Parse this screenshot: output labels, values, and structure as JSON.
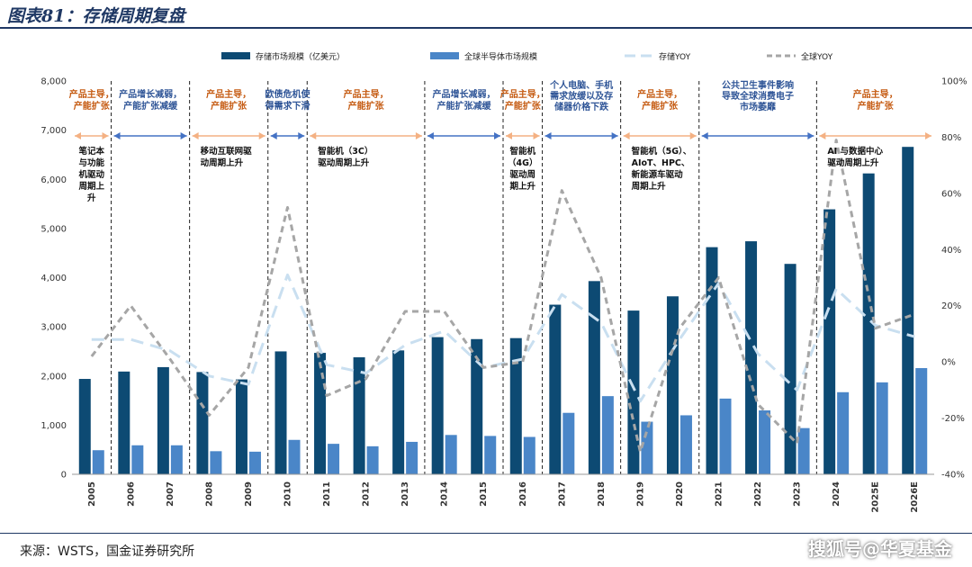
{
  "header": {
    "title": "图表81：存储周期复盘"
  },
  "footer": {
    "source": "来源：WSTS，国金证券研究所",
    "watermark": "搜狐号@华夏基金"
  },
  "colors": {
    "storage_bar": "#0d4a73",
    "global_bar": "#4a86c8",
    "storage_yoy": "#c9dff0",
    "global_yoy": "#a6a6a6",
    "phase_up": "#f4b183",
    "phase_down": "#4472c4"
  },
  "chart_data": {
    "type": "bar",
    "categories": [
      "2005",
      "2006",
      "2007",
      "2008",
      "2009",
      "2010",
      "2011",
      "2012",
      "2013",
      "2014",
      "2015",
      "2016",
      "2017",
      "2018",
      "2019",
      "2020",
      "2021",
      "2022",
      "2023",
      "2024",
      "2025E",
      "2026E"
    ],
    "y_left": {
      "min": 0,
      "max": 8000,
      "ticks": [
        "0",
        "1,000",
        "2,000",
        "3,000",
        "4,000",
        "5,000",
        "6,000",
        "7,000",
        "8,000"
      ]
    },
    "y_right": {
      "min": -40,
      "max": 100,
      "ticks": [
        "-40%",
        "-20%",
        "0%",
        "20%",
        "40%",
        "60%",
        "80%",
        "100%"
      ]
    },
    "legend_position": "top",
    "series": [
      {
        "name": "存储市场规模（亿美元）",
        "kind": "bar",
        "axis": "left",
        "values": [
          1940,
          2090,
          2180,
          2080,
          1930,
          2500,
          2470,
          2380,
          2520,
          2790,
          2750,
          2770,
          3450,
          3930,
          3330,
          3620,
          4620,
          4740,
          4280,
          5390,
          6120,
          6660
        ]
      },
      {
        "name": "全球半导体市场规模",
        "kind": "bar",
        "axis": "left",
        "values": [
          490,
          590,
          590,
          470,
          460,
          700,
          620,
          570,
          660,
          800,
          780,
          760,
          1250,
          1590,
          1070,
          1200,
          1540,
          1300,
          940,
          1670,
          1870,
          2160
        ]
      },
      {
        "name": "存储YOY",
        "kind": "line",
        "axis": "right",
        "values": [
          8,
          8,
          4,
          -5,
          -8,
          31,
          -1,
          -4,
          6,
          11,
          -2,
          1,
          24,
          14,
          -14,
          8,
          28,
          3,
          -10,
          26,
          13,
          9
        ]
      },
      {
        "name": "全球YOY",
        "kind": "line",
        "axis": "right",
        "values": [
          2,
          20,
          1,
          -19,
          -2,
          55,
          -12,
          -6,
          18,
          18,
          -2,
          0,
          61,
          30,
          -32,
          12,
          30,
          -15,
          -29,
          79,
          12,
          17
        ]
      }
    ],
    "phases": [
      {
        "text": [
          "产品主导，",
          "产能扩张"
        ],
        "color": "red",
        "start": -0.5,
        "end": 0.5,
        "arrow": "up",
        "note": [
          "笔记本",
          "与功能",
          "机驱动",
          "周期上",
          "升"
        ]
      },
      {
        "text": [
          "产品增长减弱，",
          "产能扩张减缓"
        ],
        "color": "blue",
        "start": 0.5,
        "end": 2.5,
        "arrow": "down",
        "note": []
      },
      {
        "text": [
          "产品主导，",
          "产能扩张"
        ],
        "color": "red",
        "start": 2.5,
        "end": 4.5,
        "arrow": "up",
        "note": [
          "移动互联网驱",
          "动周期上升"
        ]
      },
      {
        "text": [
          "欧债危机使",
          "得需求下滑"
        ],
        "color": "blue",
        "start": 4.5,
        "end": 5.5,
        "arrow": "down",
        "note": []
      },
      {
        "text": [
          "产品主导，",
          "产能扩张"
        ],
        "color": "red",
        "start": 5.5,
        "end": 8.5,
        "arrow": "up",
        "note": [
          "智能机（3C）",
          "驱动周期上升"
        ]
      },
      {
        "text": [
          "产品增长减弱，",
          "产能扩张减缓"
        ],
        "color": "blue",
        "start": 8.5,
        "end": 10.5,
        "arrow": "down",
        "note": []
      },
      {
        "text": [
          "产品主导，",
          "产能扩张"
        ],
        "color": "red",
        "start": 10.5,
        "end": 11.5,
        "arrow": "up",
        "note": [
          "智能机",
          "（4G）",
          "驱动周",
          "期上升"
        ]
      },
      {
        "text": [
          "个人电脑、手机",
          "需求放缓以及存",
          "储器价格下跌"
        ],
        "color": "blue",
        "start": 11.5,
        "end": 13.5,
        "arrow": "down",
        "note": []
      },
      {
        "text": [
          "产品主导，",
          "产能扩张"
        ],
        "color": "red",
        "start": 13.5,
        "end": 15.5,
        "arrow": "up",
        "note": [
          "智能机（5G）、",
          "AIoT、HPC、",
          "新能源车驱动",
          "周期上升"
        ]
      },
      {
        "text": [
          "公共卫生事件影响",
          "导致全球消费电子",
          "市场萎靡"
        ],
        "color": "blue",
        "start": 15.5,
        "end": 18.5,
        "arrow": "down",
        "note": []
      },
      {
        "text": [
          "产品主导，",
          "产能扩张"
        ],
        "color": "red",
        "start": 18.5,
        "end": 21.5,
        "arrow": "up",
        "note": [
          "AI 与数据中心",
          "驱动周期上升"
        ]
      }
    ]
  }
}
